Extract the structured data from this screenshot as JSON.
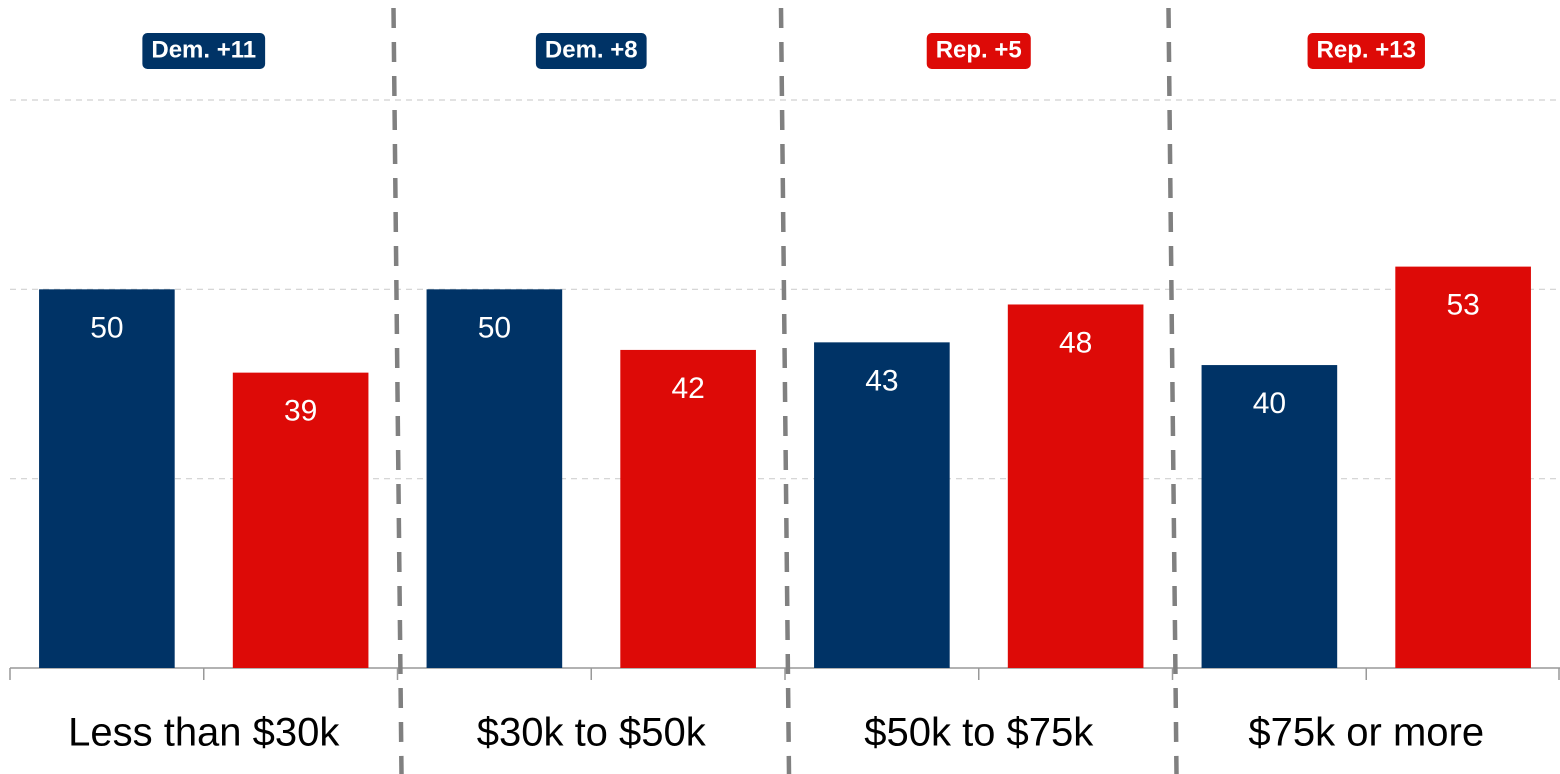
{
  "chart_data": {
    "type": "bar",
    "categories": [
      "Less than $30k",
      "$30k to $50k",
      "$50k to $75k",
      "$75k or more"
    ],
    "series": [
      {
        "color": "#003366",
        "values": [
          50,
          50,
          43,
          40
        ]
      },
      {
        "color": "#dd0a07",
        "values": [
          39,
          42,
          48,
          53
        ]
      }
    ],
    "annotations": [
      {
        "text": "Dem. +11",
        "color": "#003366"
      },
      {
        "text": "Dem. +8",
        "color": "#003366"
      },
      {
        "text": "Rep. +5",
        "color": "#dd0a07"
      },
      {
        "text": "Rep. +13",
        "color": "#dd0a07"
      }
    ],
    "ylim": [
      0,
      75
    ],
    "yticks": [
      0,
      25,
      50,
      75
    ],
    "grid": true
  }
}
